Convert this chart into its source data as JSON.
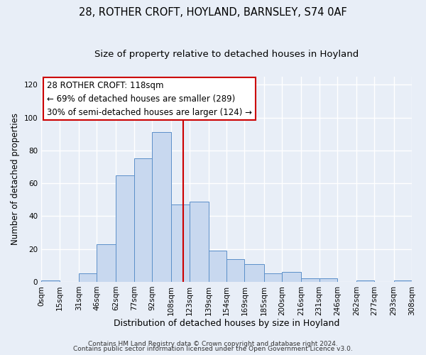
{
  "title": "28, ROTHER CROFT, HOYLAND, BARNSLEY, S74 0AF",
  "subtitle": "Size of property relative to detached houses in Hoyland",
  "xlabel": "Distribution of detached houses by size in Hoyland",
  "ylabel": "Number of detached properties",
  "bin_labels": [
    "0sqm",
    "15sqm",
    "31sqm",
    "46sqm",
    "62sqm",
    "77sqm",
    "92sqm",
    "108sqm",
    "123sqm",
    "139sqm",
    "154sqm",
    "169sqm",
    "185sqm",
    "200sqm",
    "216sqm",
    "231sqm",
    "246sqm",
    "262sqm",
    "277sqm",
    "293sqm",
    "308sqm"
  ],
  "bin_edges": [
    0,
    15,
    31,
    46,
    62,
    77,
    92,
    108,
    123,
    139,
    154,
    169,
    185,
    200,
    216,
    231,
    246,
    262,
    277,
    293,
    308
  ],
  "bar_heights": [
    1,
    0,
    5,
    23,
    65,
    75,
    91,
    47,
    49,
    19,
    14,
    11,
    5,
    6,
    2,
    2,
    0,
    1,
    0,
    1
  ],
  "bar_facecolor": "#c8d8ef",
  "bar_edgecolor": "#5b8fc9",
  "vline_x": 118,
  "vline_color": "#cc0000",
  "ylim": [
    0,
    125
  ],
  "yticks": [
    0,
    20,
    40,
    60,
    80,
    100,
    120
  ],
  "annotation_box_text": "28 ROTHER CROFT: 118sqm\n← 69% of detached houses are smaller (289)\n30% of semi-detached houses are larger (124) →",
  "footer_line1": "Contains HM Land Registry data © Crown copyright and database right 2024.",
  "footer_line2": "Contains public sector information licensed under the Open Government Licence v3.0.",
  "background_color": "#e8eef7",
  "plot_background_color": "#e8eef7",
  "grid_color": "#ffffff",
  "title_fontsize": 10.5,
  "subtitle_fontsize": 9.5,
  "ylabel_fontsize": 8.5,
  "xlabel_fontsize": 9,
  "tick_label_fontsize": 7.5,
  "ann_fontsize": 8.5,
  "footer_fontsize": 6.5
}
